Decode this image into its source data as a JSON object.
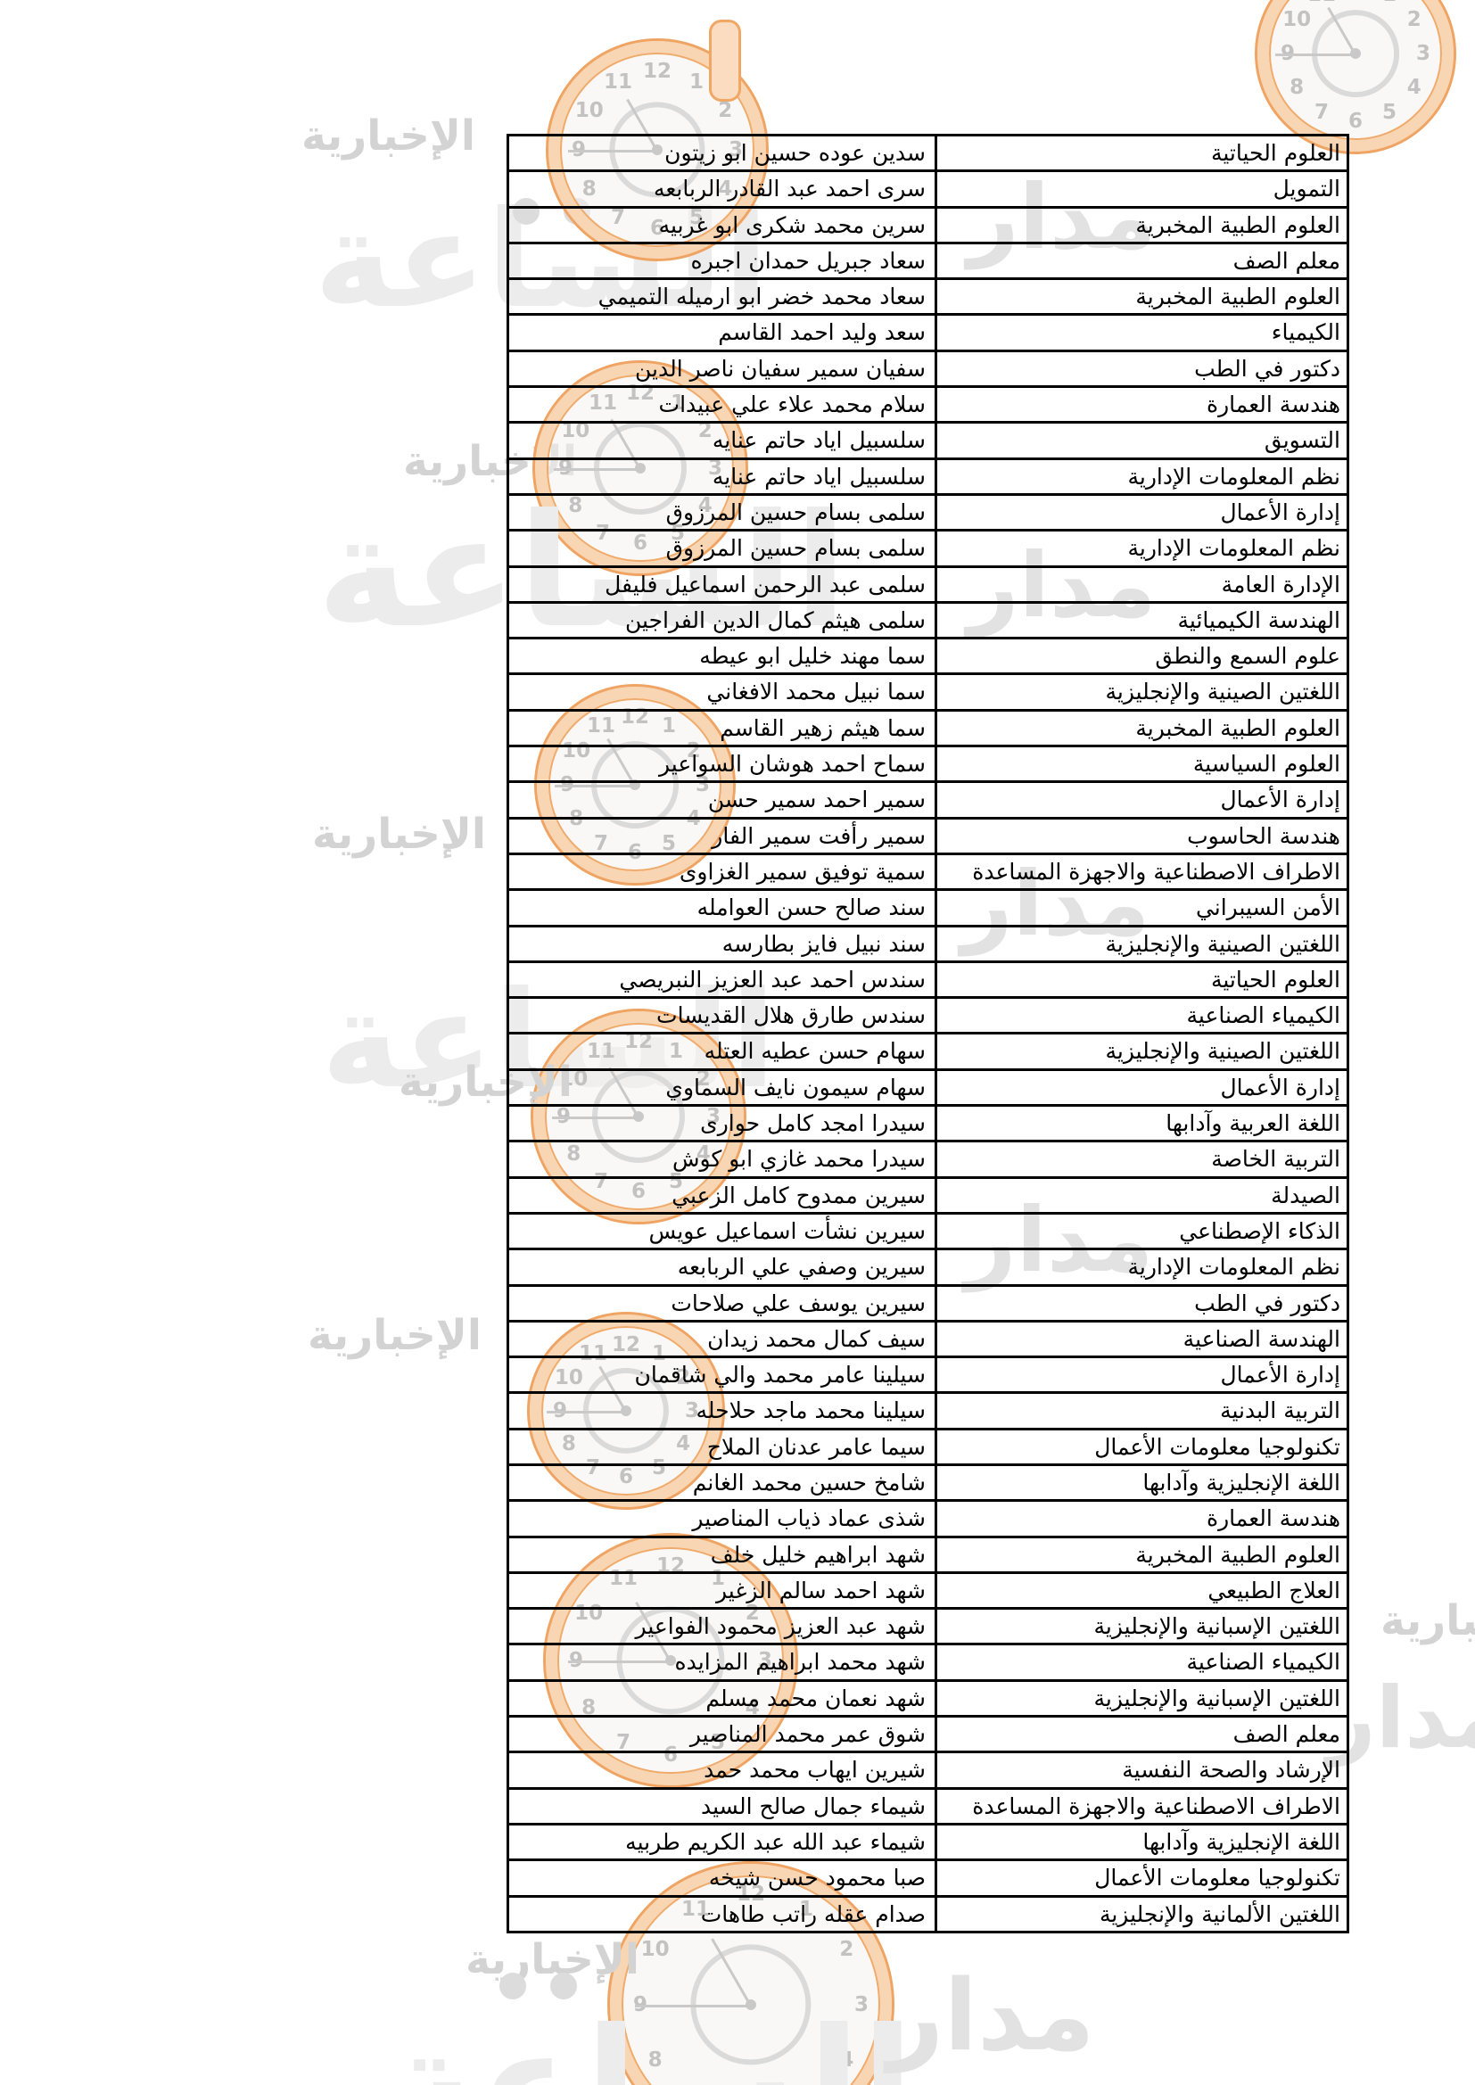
{
  "document": {
    "rows": [
      {
        "name": "سدين عوده حسين ابو زيتون",
        "major": "العلوم الحياتية"
      },
      {
        "name": "سرى احمد عبد القادر الربابعه",
        "major": "التمويل"
      },
      {
        "name": "سرين محمد شكرى ابو غربيه",
        "major": "العلوم الطبية المخبرية"
      },
      {
        "name": "سعاد جبريل حمدان اجبره",
        "major": "معلم الصف"
      },
      {
        "name": "سعاد محمد خضر ابو ارميله التميمي",
        "major": "العلوم الطبية المخبرية"
      },
      {
        "name": "سعد وليد احمد القاسم",
        "major": "الكيمياء"
      },
      {
        "name": "سفيان سمير سفيان ناصر الدين",
        "major": "دكتور في الطب"
      },
      {
        "name": "سلام محمد علاء علي عبيدات",
        "major": "هندسة العمارة"
      },
      {
        "name": "سلسبيل اياد حاتم عنايه",
        "major": "التسويق"
      },
      {
        "name": "سلسبيل اياد حاتم عنايه",
        "major": "نظم المعلومات الإدارية"
      },
      {
        "name": "سلمى بسام حسين المرزوق",
        "major": "إدارة الأعمال"
      },
      {
        "name": "سلمى بسام حسين المرزوق",
        "major": "نظم المعلومات الإدارية"
      },
      {
        "name": "سلمى عبد الرحمن اسماعيل فليفل",
        "major": "الإدارة العامة"
      },
      {
        "name": "سلمى هيثم كمال الدين الفراجين",
        "major": "الهندسة الكيميائية"
      },
      {
        "name": "سما مهند خليل ابو عيطه",
        "major": "علوم السمع والنطق"
      },
      {
        "name": "سما نبيل محمد الافغاني",
        "major": "اللغتين الصينية والإنجليزية"
      },
      {
        "name": "سما هيثم زهير القاسم",
        "major": "العلوم الطبية المخبرية"
      },
      {
        "name": "سماح احمد هوشان السواعير",
        "major": "العلوم السياسية"
      },
      {
        "name": "سمير احمد سمير حسن",
        "major": "إدارة الأعمال"
      },
      {
        "name": "سمير رأفت سمير الفار",
        "major": "هندسة الحاسوب"
      },
      {
        "name": "سمية توفيق سمير الغزاوى",
        "major": "الاطراف الاصطناعية والاجهزة المساعدة"
      },
      {
        "name": "سند صالح حسن العوامله",
        "major": "الأمن السيبراني"
      },
      {
        "name": "سند نبيل فايز بطارسه",
        "major": "اللغتين الصينية والإنجليزية"
      },
      {
        "name": "سندس احمد عبد العزيز النبريصي",
        "major": "العلوم الحياتية"
      },
      {
        "name": "سندس طارق هلال القديسات",
        "major": "الكيمياء الصناعية"
      },
      {
        "name": "سهام حسن عطيه العتله",
        "major": "اللغتين الصينية والإنجليزية"
      },
      {
        "name": "سهام سيمون نايف السماوي",
        "major": "إدارة الأعمال"
      },
      {
        "name": "سيدرا امجد كامل حوارى",
        "major": "اللغة العربية وآدابها"
      },
      {
        "name": "سيدرا محمد غازي ابو كوش",
        "major": "التربية الخاصة"
      },
      {
        "name": "سيرين ممدوح كامل الزعبي",
        "major": "الصيدلة"
      },
      {
        "name": "سيرين نشأت اسماعيل عويس",
        "major": "الذكاء الإصطناعي"
      },
      {
        "name": "سيرين وصفي علي الربابعه",
        "major": "نظم المعلومات الإدارية"
      },
      {
        "name": "سيرين يوسف علي صلاحات",
        "major": "دكتور في الطب"
      },
      {
        "name": "سيف كمال محمد زيدان",
        "major": "الهندسة الصناعية"
      },
      {
        "name": "سيلينا عامر محمد والي شاقمان",
        "major": "إدارة الأعمال"
      },
      {
        "name": "سيلينا محمد ماجد حلاحله",
        "major": "التربية البدنية"
      },
      {
        "name": "سيما عامر عدنان الملاح",
        "major": "تكنولوجيا معلومات الأعمال"
      },
      {
        "name": "شامخ حسين محمد الغانم",
        "major": "اللغة الإنجليزية وآدابها"
      },
      {
        "name": "شذى عماد ذياب المناصير",
        "major": "هندسة العمارة"
      },
      {
        "name": "شهد ابراهيم خليل خلف",
        "major": "العلوم الطبية المخبرية"
      },
      {
        "name": "شهد احمد سالم الزغير",
        "major": "العلاج الطبيعي"
      },
      {
        "name": "شهد عبد العزيز محمود الفواعير",
        "major": "اللغتين الإسبانية والإنجليزية"
      },
      {
        "name": "شهد محمد ابراهيم المزايده",
        "major": "الكيمياء الصناعية"
      },
      {
        "name": "شهد نعمان محمد مسلم",
        "major": "اللغتين الإسبانية والإنجليزية"
      },
      {
        "name": "شوق عمر محمد المناصير",
        "major": "معلم الصف"
      },
      {
        "name": "شيرين ايهاب محمد حمد",
        "major": "الإرشاد والصحة النفسية"
      },
      {
        "name": "شيماء جمال صالح السيد",
        "major": "الاطراف الاصطناعية والاجهزة المساعدة"
      },
      {
        "name": "شيماء عبد الله عبد الكريم طربيه",
        "major": "اللغة الإنجليزية وآدابها"
      },
      {
        "name": "صبا محمود حسن شيخه",
        "major": "تكنولوجيا معلومات الأعمال"
      },
      {
        "name": "صدام عقله راتب طاهات",
        "major": "اللغتين الألمانية والإنجليزية"
      }
    ]
  },
  "watermark": {
    "brand_madar": "مدار",
    "brand_alsaa": "الساعة",
    "brand_news": "الإخبارية",
    "clock_numbers": [
      "12",
      "1",
      "2",
      "3",
      "4",
      "5",
      "6",
      "7",
      "8",
      "9",
      "10",
      "11"
    ],
    "colors": {
      "ring_edge": "#efa463",
      "ring_fill": "#f8d6b3",
      "gray_text": "#d3d3d3",
      "gray_big": "#ececec",
      "table_border": "#000000"
    }
  }
}
